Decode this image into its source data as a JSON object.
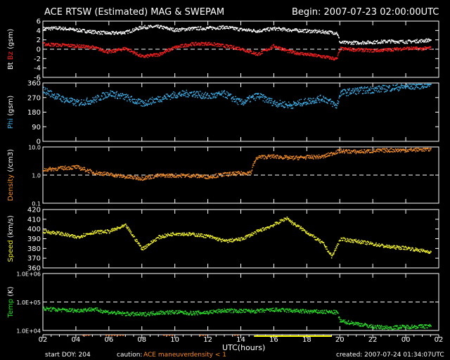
{
  "header": {
    "title": "ACE RTSW (Estimated) MAG & SWEPAM",
    "begin": "Begin: 2007-07-23 02:00:00UTC"
  },
  "footer": {
    "start_doy": "start DOY: 204",
    "caution_label": "caution:",
    "caution_maneuver": "ACE maneuver",
    "caution_density": "density < 1",
    "created": "created: 2007-07-24 01:34:07UTC",
    "xlabel": "UTC(hours)"
  },
  "colors": {
    "bt": "#ffffff",
    "bz": "#ff2020",
    "phi": "#3cb4f0",
    "density": "#f08c28",
    "speed": "#f0f028",
    "temp": "#28dc28",
    "maneuver_marker": "#ff6a00",
    "density_low_marker": "#ffff00"
  },
  "chart_data": [
    {
      "type": "scatter",
      "panel": "mag",
      "ylabel_parts": [
        "Bt",
        "Bz",
        "(gsm)"
      ],
      "ylim": [
        -6,
        6
      ],
      "yticks": [
        "-6",
        "-4",
        "-2",
        "0",
        "2",
        "4",
        "6"
      ],
      "reference_lines": [
        0
      ],
      "x": [
        2,
        3,
        4,
        5,
        6,
        7,
        8,
        9,
        10,
        11,
        12,
        13,
        14,
        15,
        16,
        17,
        18,
        19,
        19.8,
        20,
        21,
        22,
        23,
        24,
        25,
        25.5
      ],
      "series": [
        {
          "name": "Bt",
          "values": [
            4.5,
            4.6,
            4.2,
            3.8,
            3.5,
            3.7,
            4.8,
            4.9,
            4.2,
            4.5,
            4.6,
            4.8,
            4.3,
            4.0,
            4.5,
            4.2,
            4.0,
            3.8,
            3.6,
            1.5,
            1.5,
            1.6,
            1.8,
            1.7,
            1.9,
            2.1
          ]
        },
        {
          "name": "Bz",
          "values": [
            1.2,
            1.0,
            0.8,
            0.5,
            -0.5,
            0.3,
            -1.5,
            -1.0,
            0.5,
            1.2,
            1.3,
            0.8,
            0.2,
            -1.0,
            0.8,
            -0.5,
            -1.0,
            -1.5,
            -2.0,
            0.2,
            0.0,
            -0.2,
            0.0,
            0.3,
            0.2,
            0.4
          ]
        }
      ]
    },
    {
      "type": "scatter",
      "panel": "phi",
      "ylabel_parts": [
        "Phi",
        "(gsm)"
      ],
      "ylim": [
        0,
        360
      ],
      "yticks": [
        "0",
        "90",
        "180",
        "270",
        "360"
      ],
      "x": [
        2,
        3,
        4,
        5,
        6,
        7,
        8,
        9,
        10,
        11,
        12,
        13,
        14,
        15,
        16,
        17,
        18,
        19,
        19.8,
        20,
        21,
        22,
        23,
        24,
        25,
        25.5
      ],
      "series": [
        {
          "name": "Phi",
          "values": [
            320,
            270,
            240,
            255,
            300,
            275,
            235,
            265,
            290,
            300,
            280,
            295,
            240,
            285,
            240,
            225,
            250,
            270,
            220,
            300,
            315,
            322,
            332,
            340,
            350,
            358
          ]
        }
      ]
    },
    {
      "type": "scatter",
      "panel": "density",
      "ylabel_parts": [
        "Density",
        "(/cm3)"
      ],
      "yscale": "log",
      "ylim": [
        0.1,
        10.0
      ],
      "yticks": [
        "0.1",
        "1.0",
        "10.0"
      ],
      "reference_lines": [
        1.0
      ],
      "x": [
        2,
        3,
        4,
        5,
        6,
        7,
        8,
        9,
        10,
        11,
        12,
        13,
        14,
        14.6,
        15,
        16,
        17,
        18,
        19,
        20,
        21,
        22,
        23,
        24,
        25,
        25.5
      ],
      "series": [
        {
          "name": "Density",
          "values": [
            1.6,
            1.8,
            2.0,
            1.3,
            1.1,
            0.9,
            0.8,
            1.0,
            1.0,
            1.0,
            0.9,
            1.1,
            1.2,
            1.3,
            4.5,
            4.8,
            4.2,
            4.5,
            4.7,
            7.5,
            7.0,
            7.5,
            8.0,
            8.0,
            8.5,
            8.5
          ]
        }
      ]
    },
    {
      "type": "scatter",
      "panel": "speed",
      "ylabel_parts": [
        "Speed",
        "(km/s)"
      ],
      "ylim": [
        360,
        420
      ],
      "yticks": [
        "360",
        "370",
        "380",
        "390",
        "400",
        "410",
        "420"
      ],
      "x": [
        2,
        3,
        4,
        5,
        6,
        7,
        8,
        9,
        10,
        11,
        12,
        13,
        14,
        15,
        16,
        16.8,
        17,
        18,
        19,
        19.5,
        20,
        21,
        22,
        23,
        24,
        25,
        25.5
      ],
      "series": [
        {
          "name": "Speed",
          "values": [
            398,
            396,
            392,
            397,
            398,
            404,
            380,
            392,
            396,
            395,
            393,
            388,
            390,
            398,
            405,
            412,
            408,
            397,
            385,
            372,
            390,
            388,
            385,
            382,
            381,
            378,
            377
          ]
        }
      ]
    },
    {
      "type": "scatter",
      "panel": "temp",
      "ylabel_parts": [
        "Temp",
        "(K)"
      ],
      "yscale": "log",
      "ylim": [
        10000,
        1000000
      ],
      "yticks": [
        "1.0E+04",
        "1.0E+05",
        "1.0E+06"
      ],
      "reference_lines": [
        100000
      ],
      "x": [
        2,
        3,
        4,
        5,
        6,
        7,
        8,
        9,
        10,
        11,
        12,
        13,
        14,
        15,
        16,
        17,
        18,
        19,
        19.8,
        20,
        21,
        22,
        23,
        24,
        25,
        25.5
      ],
      "xticks": [
        "02",
        "04",
        "06",
        "08",
        "10",
        "12",
        "14",
        "16",
        "18",
        "20",
        "22",
        "00",
        "02"
      ],
      "series": [
        {
          "name": "Temp",
          "values": [
            60000,
            55000,
            52000,
            58000,
            45000,
            40000,
            38000,
            44000,
            46000,
            42000,
            45000,
            52000,
            50000,
            50000,
            55000,
            52000,
            48000,
            47000,
            45000,
            22000,
            18000,
            14000,
            13000,
            14000,
            14500,
            15000
          ]
        }
      ]
    }
  ]
}
